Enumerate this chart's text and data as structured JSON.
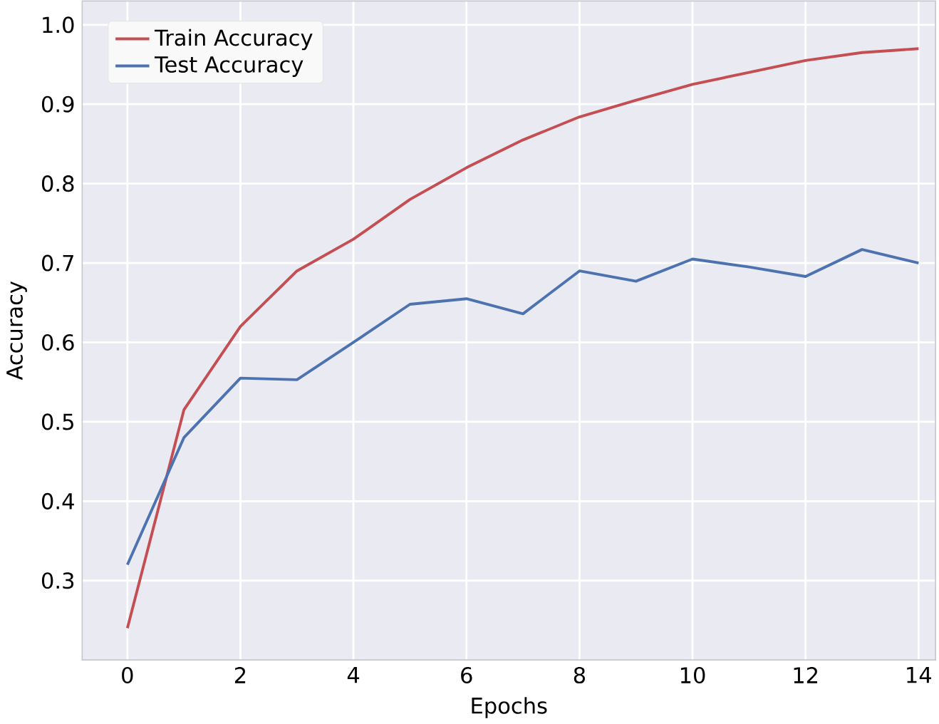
{
  "chart_data": {
    "type": "line",
    "xlabel": "Epochs",
    "ylabel": "Accuracy",
    "x": [
      0,
      1,
      2,
      3,
      4,
      5,
      6,
      7,
      8,
      9,
      10,
      11,
      12,
      13,
      14
    ],
    "series": [
      {
        "name": "Train Accuracy",
        "color": "#c44e52",
        "values": [
          0.24,
          0.515,
          0.62,
          0.69,
          0.73,
          0.78,
          0.82,
          0.855,
          0.884,
          0.905,
          0.925,
          0.94,
          0.955,
          0.965,
          0.97
        ]
      },
      {
        "name": "Test Accuracy",
        "color": "#4c72b0",
        "values": [
          0.32,
          0.48,
          0.555,
          0.553,
          0.6,
          0.648,
          0.655,
          0.636,
          0.69,
          0.677,
          0.705,
          0.695,
          0.683,
          0.717,
          0.7
        ]
      }
    ],
    "xlim": [
      -0.8,
      14.3
    ],
    "ylim": [
      0.2,
      1.03
    ],
    "xticks": [
      0,
      2,
      4,
      6,
      8,
      10,
      12,
      14
    ],
    "yticks": [
      0.3,
      0.4,
      0.5,
      0.6,
      0.7,
      0.8,
      0.9,
      {
        "value": 1.0,
        "label": "1.0"
      }
    ],
    "grid": true,
    "legend": "top left",
    "marker": "none",
    "line_style": "solid"
  }
}
